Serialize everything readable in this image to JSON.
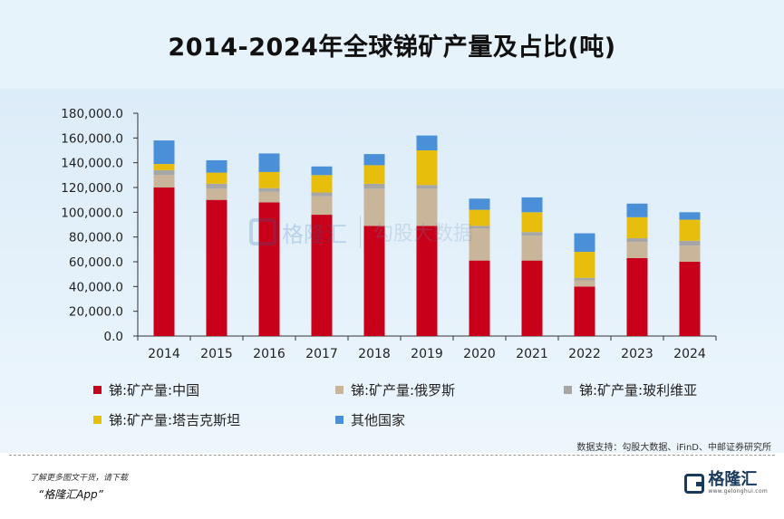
{
  "title": "2014-2024年全球锑矿产量及占比(吨)",
  "chart_data": {
    "type": "bar",
    "stacked": true,
    "categories": [
      "2014",
      "2015",
      "2016",
      "2017",
      "2018",
      "2019",
      "2020",
      "2021",
      "2022",
      "2023",
      "2024"
    ],
    "ylim": [
      0,
      180000
    ],
    "yticks": [
      "0.0",
      "20,000.0",
      "40,000.0",
      "60,000.0",
      "80,000.0",
      "100,000.0",
      "120,000.0",
      "140,000.0",
      "160,000.0",
      "180,000.0"
    ],
    "grid": false,
    "legend_position": "bottom",
    "series": [
      {
        "name": "锑:矿产量:中国",
        "color": "#c8001a",
        "values": [
          120000,
          110000,
          108000,
          98000,
          89000,
          89000,
          61000,
          61000,
          40000,
          63000,
          60000
        ]
      },
      {
        "name": "锑:矿产量:俄罗斯",
        "color": "#c9b59a",
        "values": [
          10000,
          9000,
          8500,
          15000,
          30000,
          30000,
          26000,
          20000,
          5000,
          13000,
          13000
        ]
      },
      {
        "name": "锑:矿产量:玻利维亚",
        "color": "#a6a6a6",
        "values": [
          4000,
          4000,
          3000,
          3000,
          4000,
          3000,
          2000,
          3000,
          2000,
          3000,
          4000
        ]
      },
      {
        "name": "锑:矿产量:塔吉克斯坦",
        "color": "#e8be0c",
        "values": [
          5000,
          9000,
          13000,
          14000,
          15000,
          28000,
          13000,
          16000,
          21000,
          17000,
          17000
        ]
      },
      {
        "name": "其他国家",
        "color": "#4a90d8",
        "values": [
          19000,
          10000,
          15000,
          7000,
          9000,
          12000,
          9000,
          12000,
          15000,
          11000,
          6000
        ]
      }
    ]
  },
  "source": "数据支持：勾股大数据、iFinD、中邮证券研究所",
  "watermark": {
    "brand": "格隆汇",
    "partner": "勾股大数据"
  },
  "footer": {
    "line1": "了解更多图文干货，请下载",
    "line2": "“格隆汇App”",
    "logo_text": "格隆汇",
    "logo_sub": "www.gelonghui.com"
  }
}
